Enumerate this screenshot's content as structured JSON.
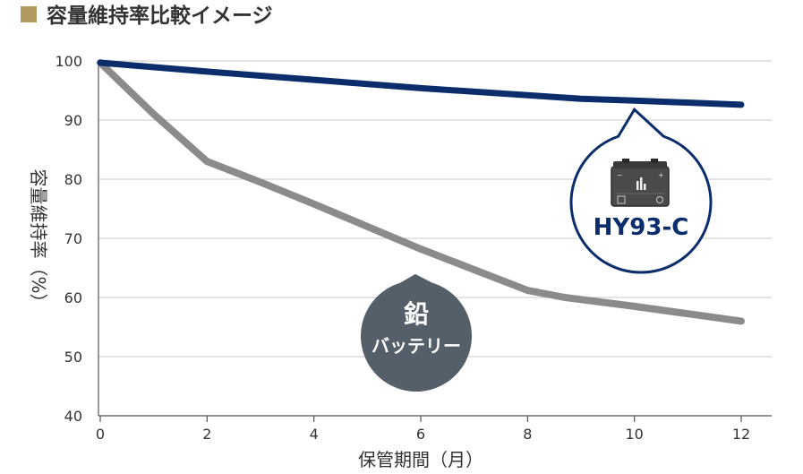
{
  "chart_data": {
    "type": "line",
    "title": "容量維持率比較イメージ",
    "xlabel": "保管期間（月）",
    "ylabel": "容量維持率（%）",
    "xlim": [
      0,
      12
    ],
    "ylim": [
      40,
      100
    ],
    "x_ticks": [
      0,
      2,
      4,
      6,
      8,
      10,
      12
    ],
    "y_ticks": [
      40,
      50,
      60,
      70,
      80,
      90,
      100
    ],
    "grid": "horizontal",
    "colors": {
      "title_square": "#b09a5e",
      "hy93c": "#0c2d6b",
      "lead": "#8a8b8d",
      "grid": "#c9c9c9",
      "axis": "#555555",
      "lead_bubble": "#545f69"
    },
    "series": [
      {
        "name": "HY93-C",
        "x": [
          0,
          2,
          4,
          6,
          8,
          9,
          10,
          12
        ],
        "values": [
          99.7,
          98.2,
          96.8,
          95.4,
          94.2,
          93.6,
          93.3,
          92.6
        ]
      },
      {
        "name": "鉛\nバッテリー",
        "x": [
          0,
          1,
          2,
          3,
          4,
          5,
          6,
          7,
          8,
          8.7,
          10,
          12
        ],
        "values": [
          99.7,
          91,
          83,
          79.5,
          75.8,
          72,
          68.2,
          64.7,
          61.2,
          60,
          58.5,
          56
        ]
      }
    ],
    "annotations": [
      {
        "label": "HY93-C",
        "target_x": 10,
        "target_y": 93.3
      },
      {
        "label_line1": "鉛",
        "label_line2": "バッテリー",
        "target_x": 6,
        "target_y": 68.2
      }
    ]
  }
}
